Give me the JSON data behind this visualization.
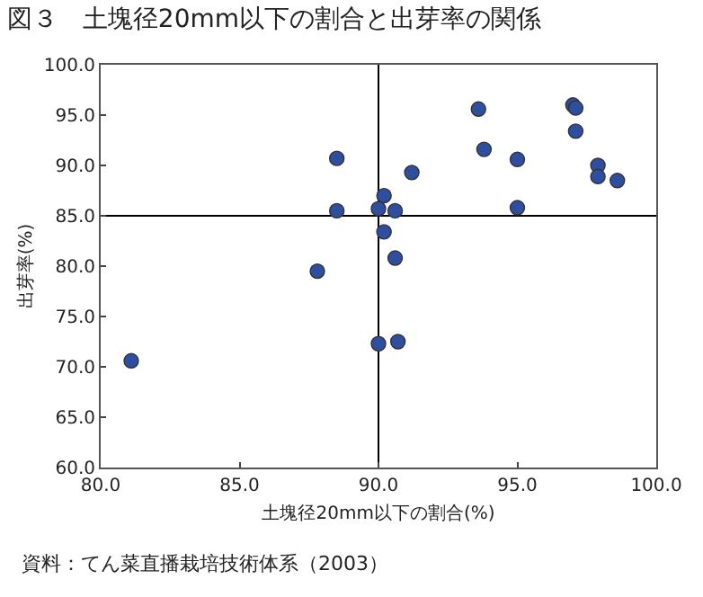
{
  "chart_data": {
    "type": "scatter",
    "title": "図３　土塊径20mm以下の割合と出芽率の関係",
    "xlabel": "土塊径20mm以下の割合(%)",
    "ylabel": "出芽率(%)",
    "annotations": [
      "資料：てん菜直播栽培技術体系（2003）"
    ],
    "x": [
      81.1,
      87.8,
      88.5,
      88.5,
      91.2,
      90.2,
      90.0,
      90.6,
      90.2,
      90.6,
      90.0,
      90.7,
      93.6,
      93.8,
      95.0,
      95.0,
      97.0,
      97.1,
      97.1,
      97.9,
      97.9,
      98.6
    ],
    "series": [
      {
        "color": "#2e4fa0",
        "values": [
          70.6,
          79.5,
          85.5,
          90.7,
          89.3,
          87.0,
          85.7,
          85.5,
          83.4,
          80.8,
          72.3,
          72.5,
          95.6,
          91.6,
          90.6,
          85.8,
          96.0,
          95.7,
          93.4,
          90.0,
          88.9,
          88.5
        ]
      }
    ],
    "xlim": [
      80,
      100
    ],
    "xticks": [
      {
        "value": 80,
        "label": "80.0"
      },
      {
        "value": 85,
        "label": "85.0"
      },
      {
        "value": 90,
        "label": "90.0"
      },
      {
        "value": 95,
        "label": "95.0"
      },
      {
        "value": 100,
        "label": "100.0"
      }
    ],
    "ylim": [
      60,
      100
    ],
    "yticks": [
      {
        "value": 60,
        "label": "60.0"
      },
      {
        "value": 65,
        "label": "65.0"
      },
      {
        "value": 70,
        "label": "70.0"
      },
      {
        "value": 75,
        "label": "75.0"
      },
      {
        "value": 80,
        "label": "80.0"
      },
      {
        "value": 85,
        "label": "85.0"
      },
      {
        "value": 90,
        "label": "90.0"
      },
      {
        "value": 95,
        "label": "95.0"
      },
      {
        "value": 100,
        "label": "100.0"
      }
    ],
    "ref_lines": [
      {
        "axis": "x",
        "value": 90,
        "color": "#000000"
      },
      {
        "axis": "y",
        "value": 85,
        "color": "#000000"
      }
    ],
    "marker": "circle",
    "grid": false
  }
}
